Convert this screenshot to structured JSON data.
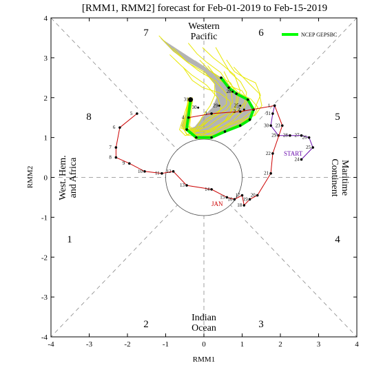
{
  "chart_data": {
    "type": "scatter",
    "title": "[RMM1, RMM2] forecast for Feb-01-2019 to Feb-15-2019",
    "xlabel": "RMM1",
    "ylabel": "RMM2",
    "xlim": [
      -4,
      4
    ],
    "ylim": [
      -4,
      4
    ],
    "xticks": [
      "-4",
      "-3",
      "-2",
      "-1",
      "0",
      "1",
      "2",
      "3",
      "4"
    ],
    "yticks": [
      "-4",
      "-3",
      "-2",
      "-1",
      "0",
      "1",
      "2",
      "3",
      "4"
    ],
    "phases": [
      "1",
      "2",
      "3",
      "4",
      "5",
      "6",
      "7",
      "8"
    ],
    "regions": {
      "western_pacific": [
        "Western",
        "Pacific"
      ],
      "indian_ocean": [
        "Indian",
        "Ocean"
      ],
      "west_hem": [
        "West. Hem.",
        "and Africa"
      ],
      "maritime": [
        "Maritime",
        "Continent"
      ]
    },
    "legend": {
      "label": "NCEP GEPSBC",
      "color": "#00ff00",
      "placement": "top-right"
    },
    "colors": {
      "observed": "#cc0000",
      "recent": "#6a0dad",
      "ensemble": "#e8e800",
      "spread": "#999999",
      "mean": "#00ee00"
    },
    "annotations": {
      "jan": "JAN",
      "start": "START"
    },
    "observed_jan": {
      "color": "#cc0000",
      "points": [
        {
          "label": "5",
          "x": -1.75,
          "y": 1.6
        },
        {
          "label": "6",
          "x": -2.2,
          "y": 1.25
        },
        {
          "label": "7",
          "x": -2.3,
          "y": 0.75
        },
        {
          "label": "8",
          "x": -2.3,
          "y": 0.5
        },
        {
          "label": "9",
          "x": -1.95,
          "y": 0.35
        },
        {
          "label": "10",
          "x": -1.55,
          "y": 0.15
        },
        {
          "label": "11",
          "x": -1.1,
          "y": 0.1
        },
        {
          "label": "12",
          "x": -0.8,
          "y": 0.15
        },
        {
          "label": "13",
          "x": -0.45,
          "y": -0.2
        },
        {
          "label": "14",
          "x": 0.2,
          "y": -0.3
        },
        {
          "label": "15",
          "x": 0.6,
          "y": -0.5
        },
        {
          "label": "16",
          "x": 0.8,
          "y": -0.55
        },
        {
          "label": "17",
          "x": 1.0,
          "y": -0.45
        },
        {
          "label": "18",
          "x": 1.05,
          "y": -0.7
        },
        {
          "label": "19",
          "x": 1.2,
          "y": -0.55
        },
        {
          "label": "20",
          "x": 1.4,
          "y": -0.45
        },
        {
          "label": "21",
          "x": 1.75,
          "y": 0.1
        },
        {
          "label": "22",
          "x": 1.8,
          "y": 0.6
        },
        {
          "label": "23",
          "x": 2.05,
          "y": 1.3
        },
        {
          "label": "1",
          "x": 1.85,
          "y": 1.8
        },
        {
          "label": "2",
          "x": 0.95,
          "y": 1.65
        },
        {
          "label": "3",
          "x": 0.2,
          "y": 1.6
        },
        {
          "label": "4",
          "x": -0.4,
          "y": 1.5
        }
      ]
    },
    "recent_feb": {
      "color": "#6a0dad",
      "points": [
        {
          "label": "24",
          "x": 2.55,
          "y": 0.45
        },
        {
          "label": "25",
          "x": 2.85,
          "y": 0.75
        },
        {
          "label": "26",
          "x": 2.75,
          "y": 1.0
        },
        {
          "label": "27",
          "x": 2.55,
          "y": 1.05
        },
        {
          "label": "28",
          "x": 2.25,
          "y": 1.05
        },
        {
          "label": "29",
          "x": 1.95,
          "y": 1.05
        },
        {
          "label": "30",
          "x": 1.75,
          "y": 1.3
        },
        {
          "label": "31",
          "x": 1.8,
          "y": 1.6
        }
      ]
    },
    "forecast_mean": {
      "color": "#00ee00",
      "points": [
        {
          "label": "31",
          "x": -0.35,
          "y": 1.95
        },
        {
          "label": "",
          "x": -0.45,
          "y": 1.2
        },
        {
          "label": "",
          "x": -0.2,
          "y": 1.0
        },
        {
          "label": "",
          "x": 0.2,
          "y": 1.0
        },
        {
          "label": "",
          "x": 0.55,
          "y": 1.15
        },
        {
          "label": "",
          "x": 0.95,
          "y": 1.3
        },
        {
          "label": "",
          "x": 1.2,
          "y": 1.45
        },
        {
          "label": "",
          "x": 1.3,
          "y": 1.7
        },
        {
          "label": "",
          "x": 1.15,
          "y": 1.95
        },
        {
          "label": "",
          "x": 0.85,
          "y": 2.1
        },
        {
          "label": "",
          "x": 0.65,
          "y": 2.25
        },
        {
          "label": "",
          "x": 0.45,
          "y": 2.5
        }
      ]
    },
    "forecast_labels": [
      {
        "label": "30",
        "x": -0.15,
        "y": 1.75
      },
      {
        "label": "29",
        "x": 0.4,
        "y": 1.8
      },
      {
        "label": "2",
        "x": 1.05,
        "y": 1.7
      },
      {
        "label": "25",
        "x": 0.95,
        "y": 1.8
      },
      {
        "label": "28",
        "x": 0.75,
        "y": 2.15
      }
    ]
  }
}
